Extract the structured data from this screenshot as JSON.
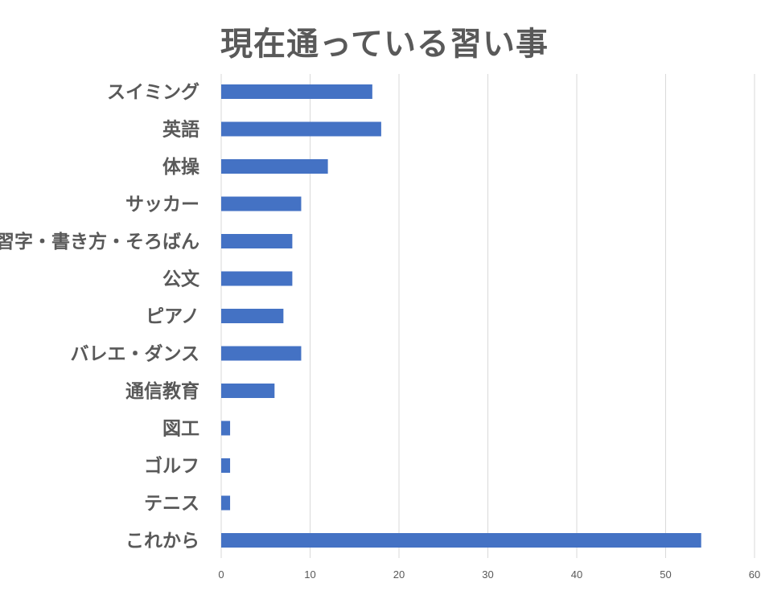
{
  "chart_data": {
    "type": "bar",
    "orientation": "horizontal",
    "title": "現在通っている習い事",
    "categories": [
      "スイミング",
      "英語",
      "体操",
      "サッカー",
      "習字・書き方・そろばん",
      "公文",
      "ピアノ",
      "バレエ・ダンス",
      "通信教育",
      "図工",
      "ゴルフ",
      "テニス",
      "これから"
    ],
    "values": [
      17,
      18,
      12,
      9,
      8,
      8,
      7,
      9,
      6,
      1,
      1,
      1,
      54
    ],
    "xlim": [
      0,
      60
    ],
    "xticks": [
      "0",
      "10",
      "20",
      "30",
      "40",
      "50",
      "60"
    ],
    "xlabel": "",
    "ylabel": "",
    "grid": true,
    "legend": "none",
    "bar_color": "#4472C4",
    "grid_color": "#D9D9D9",
    "text_color": "#595959"
  }
}
